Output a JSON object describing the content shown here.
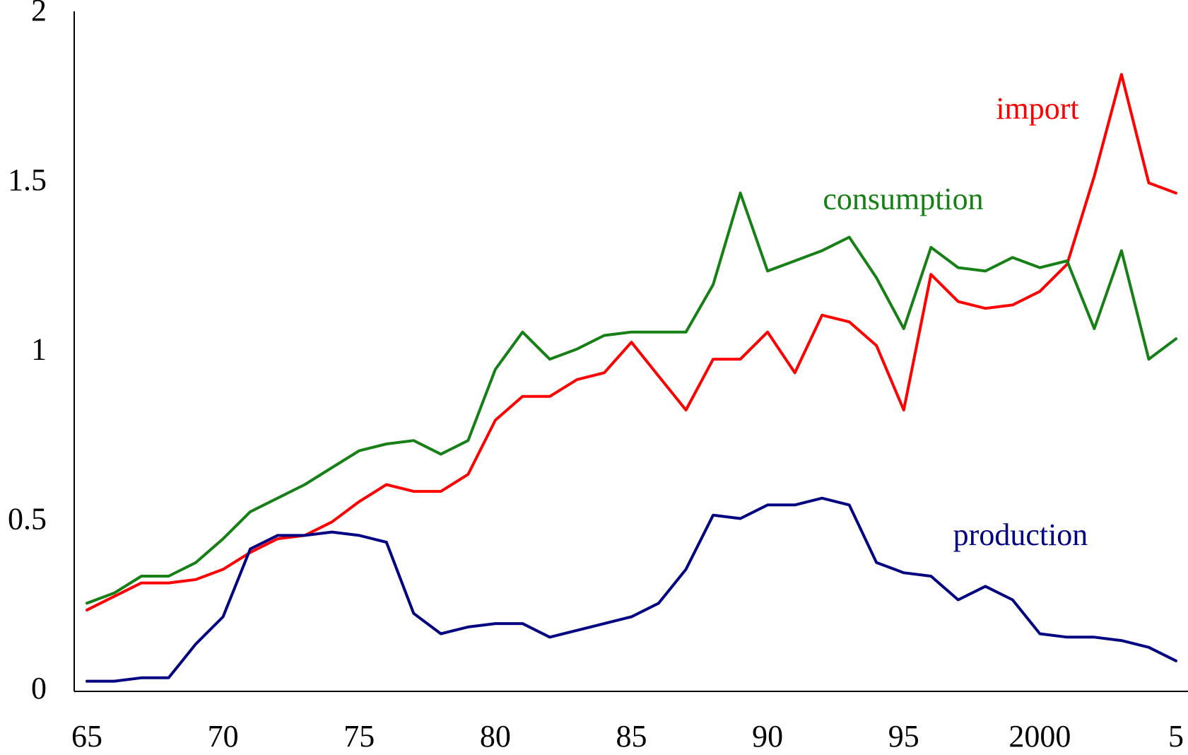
{
  "chart_data": {
    "type": "line",
    "x": [
      1965,
      1966,
      1967,
      1968,
      1969,
      1970,
      1971,
      1972,
      1973,
      1974,
      1975,
      1976,
      1977,
      1978,
      1979,
      1980,
      1981,
      1982,
      1983,
      1984,
      1985,
      1986,
      1987,
      1988,
      1989,
      1990,
      1991,
      1992,
      1993,
      1994,
      1995,
      1996,
      1997,
      1998,
      1999,
      2000,
      2001,
      2002,
      2003,
      2004,
      2005
    ],
    "series": [
      {
        "name": "import",
        "color": "#ff0000",
        "values": [
          0.24,
          0.28,
          0.32,
          0.32,
          0.33,
          0.36,
          0.41,
          0.45,
          0.46,
          0.5,
          0.56,
          0.61,
          0.59,
          0.59,
          0.64,
          0.8,
          0.87,
          0.87,
          0.92,
          0.94,
          1.03,
          0.93,
          0.83,
          0.98,
          0.98,
          1.06,
          0.94,
          1.11,
          1.09,
          1.02,
          0.83,
          1.23,
          1.15,
          1.13,
          1.14,
          1.18,
          1.26,
          1.52,
          1.82,
          1.5,
          1.47
        ]
      },
      {
        "name": "consumption",
        "color": "#168016",
        "values": [
          0.26,
          0.29,
          0.34,
          0.34,
          0.38,
          0.45,
          0.53,
          0.57,
          0.61,
          0.66,
          0.71,
          0.73,
          0.74,
          0.7,
          0.74,
          0.95,
          1.06,
          0.98,
          1.01,
          1.05,
          1.06,
          1.06,
          1.06,
          1.2,
          1.47,
          1.24,
          1.27,
          1.3,
          1.34,
          1.22,
          1.07,
          1.31,
          1.25,
          1.24,
          1.28,
          1.25,
          1.27,
          1.07,
          1.3,
          0.98,
          1.04
        ]
      },
      {
        "name": "production",
        "color": "#000080",
        "values": [
          0.03,
          0.03,
          0.04,
          0.04,
          0.14,
          0.22,
          0.42,
          0.46,
          0.46,
          0.47,
          0.46,
          0.44,
          0.23,
          0.17,
          0.19,
          0.2,
          0.2,
          0.16,
          0.18,
          0.2,
          0.22,
          0.26,
          0.36,
          0.52,
          0.51,
          0.55,
          0.55,
          0.57,
          0.55,
          0.38,
          0.35,
          0.34,
          0.27,
          0.31,
          0.27,
          0.17,
          0.16,
          0.16,
          0.15,
          0.13,
          0.09
        ]
      }
    ],
    "xlim": [
      1965,
      2005
    ],
    "xticks": [
      {
        "value": 1965,
        "label": "65"
      },
      {
        "value": 1970,
        "label": "70"
      },
      {
        "value": 1975,
        "label": "75"
      },
      {
        "value": 1980,
        "label": "80"
      },
      {
        "value": 1985,
        "label": "85"
      },
      {
        "value": 1990,
        "label": "90"
      },
      {
        "value": 1995,
        "label": "95"
      },
      {
        "value": 2000,
        "label": "2000"
      },
      {
        "value": 2005,
        "label": "5"
      }
    ],
    "ylim": [
      0,
      2
    ],
    "yticks": [
      0,
      0.5,
      1,
      1.5,
      2
    ],
    "grid": false
  }
}
